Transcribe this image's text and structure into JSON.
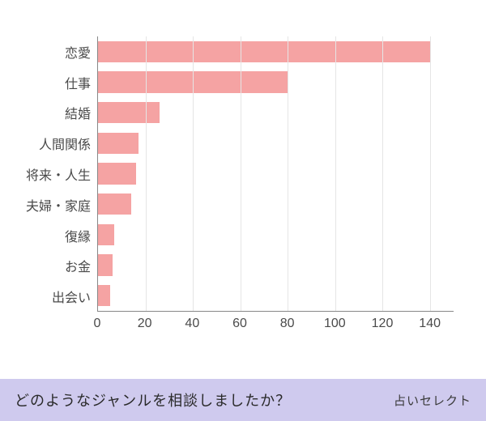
{
  "chart": {
    "type": "bar-horizontal",
    "categories": [
      "恋愛",
      "仕事",
      "結婚",
      "人間関係",
      "将来・人生",
      "夫婦・家庭",
      "復縁",
      "お金",
      "出会い"
    ],
    "values": [
      140,
      80,
      26,
      17,
      16,
      14,
      7,
      6,
      5
    ],
    "bar_color": "#f5a3a3",
    "xlim": [
      0,
      150
    ],
    "xticks": [
      0,
      20,
      40,
      60,
      80,
      100,
      120,
      140
    ],
    "grid_color": "#e5e5e5",
    "axis_color": "#888888",
    "background_color": "#ffffff",
    "label_fontsize": 16,
    "label_color": "#4a4a4a"
  },
  "footer": {
    "title": "どのようなジャンルを相談しましたか？",
    "brand": "占いセレクト",
    "background_color": "#cfcaee",
    "title_color": "#2a2a2a",
    "brand_color": "#3a3a3a"
  }
}
